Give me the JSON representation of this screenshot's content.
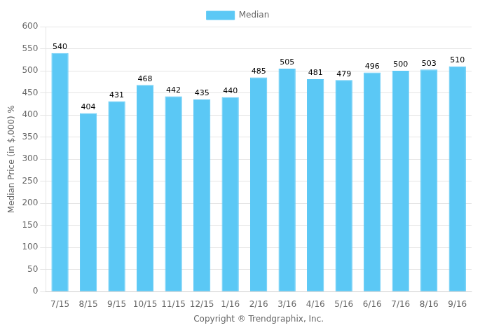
{
  "chart_data": {
    "type": "bar",
    "categories": [
      "7/15",
      "8/15",
      "9/15",
      "10/15",
      "11/15",
      "12/15",
      "1/16",
      "2/16",
      "3/16",
      "4/16",
      "5/16",
      "6/16",
      "7/16",
      "8/16",
      "9/16"
    ],
    "series": [
      {
        "name": "Median",
        "color": "#5BC8F5",
        "values": [
          540,
          404,
          431,
          468,
          442,
          435,
          440,
          485,
          505,
          481,
          479,
          496,
          500,
          503,
          510
        ]
      }
    ],
    "xlabel": "Copyright ® Trendgraphix, Inc.",
    "ylabel": "Median Price (in $,000) %",
    "ylim": [
      0,
      600
    ],
    "yticks": [
      0,
      50,
      100,
      150,
      200,
      250,
      300,
      350,
      400,
      450,
      500,
      550,
      600
    ],
    "grid": true,
    "legend": "top",
    "data_labels": true
  }
}
